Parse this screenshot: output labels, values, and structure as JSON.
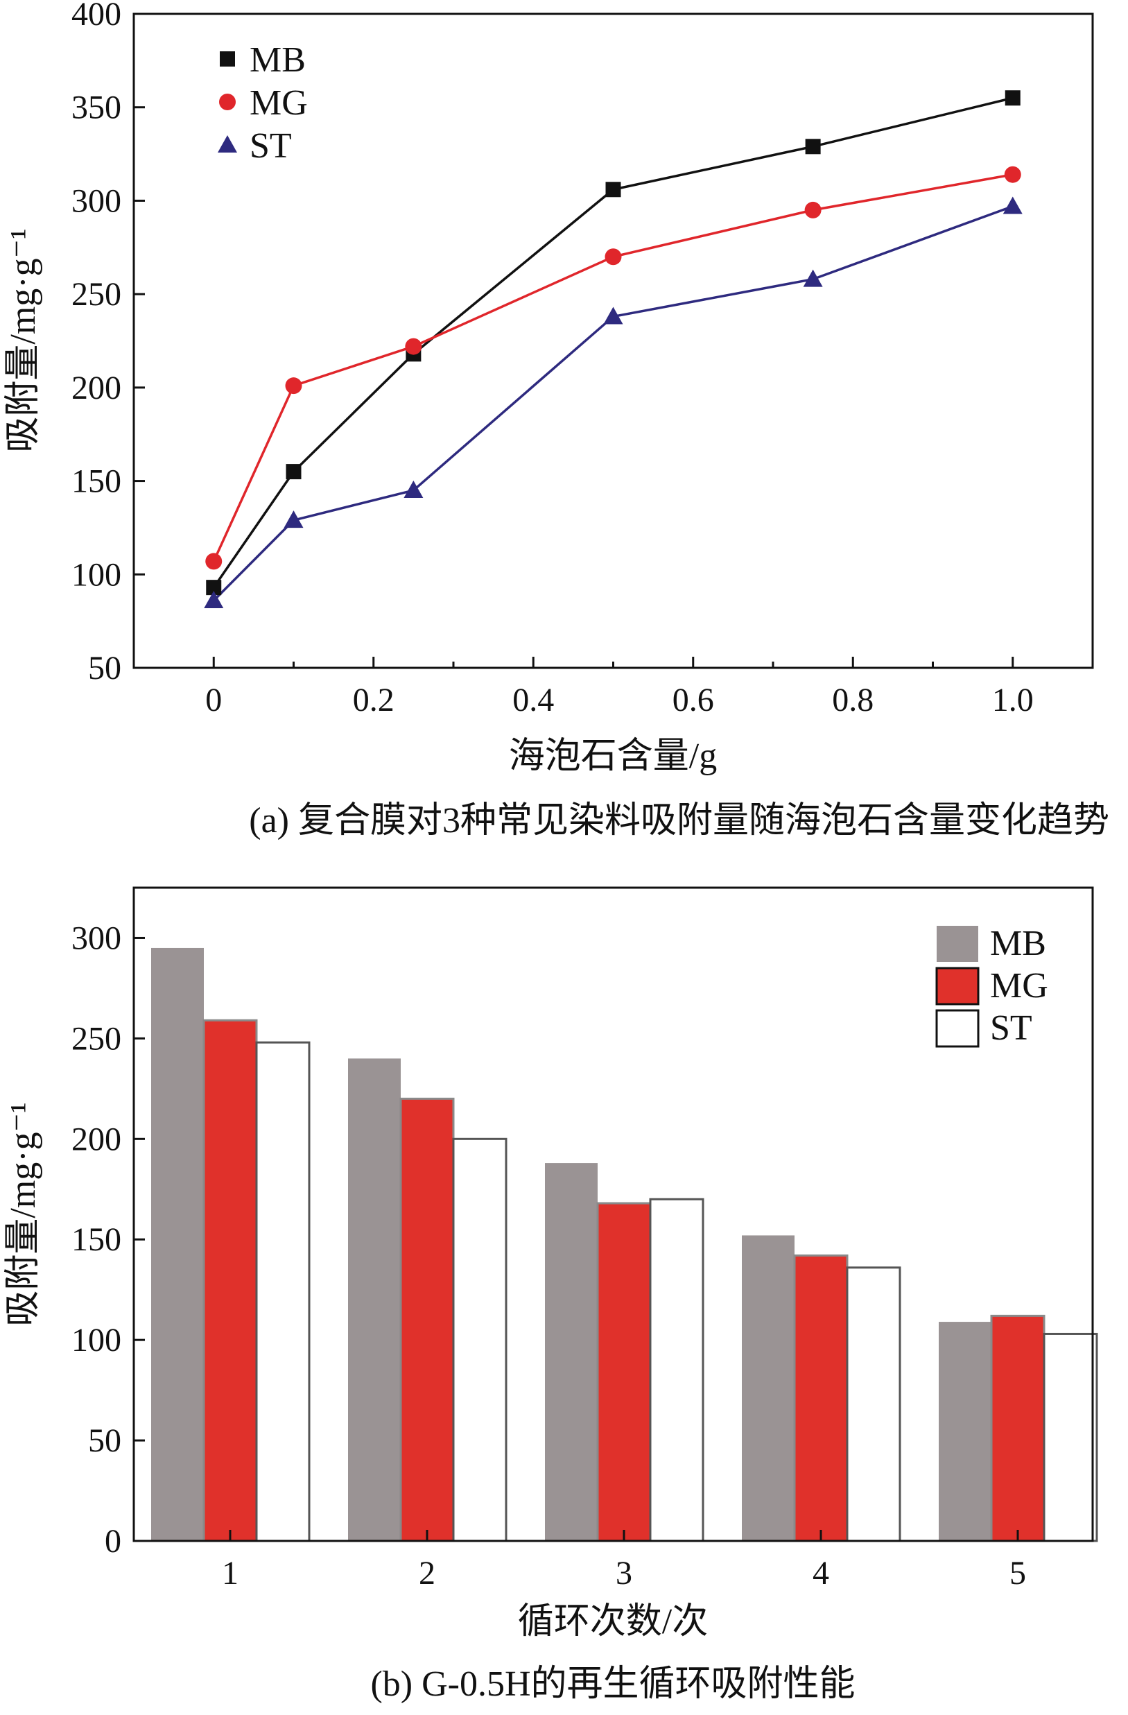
{
  "chart_data": [
    {
      "type": "line",
      "panel": "a",
      "caption": "(a) 复合膜对3种常见染料吸附量随海泡石含量变化趋势",
      "xlabel": "海泡石含量/g",
      "ylabel": "吸附量/mg·g⁻¹",
      "xlim": [
        -0.1,
        1.1
      ],
      "ylim": [
        50,
        400
      ],
      "x_ticks": [
        0,
        0.2,
        0.4,
        0.6,
        0.8,
        1.0
      ],
      "x_tick_labels": [
        "0",
        "0.2",
        "0.4",
        "0.6",
        "0.8",
        "1.0"
      ],
      "y_ticks": [
        50,
        100,
        150,
        200,
        250,
        300,
        350,
        400
      ],
      "y_tick_labels": [
        "50",
        "100",
        "150",
        "200",
        "250",
        "300",
        "350",
        "400"
      ],
      "x": [
        0,
        0.1,
        0.25,
        0.5,
        0.75,
        1.0
      ],
      "legend_position": "top-left",
      "series": [
        {
          "name": "MB",
          "marker": "square",
          "color": "#111111",
          "values": [
            93,
            155,
            218,
            306,
            329,
            355
          ]
        },
        {
          "name": "MG",
          "marker": "circle",
          "color": "#e0262b",
          "values": [
            107,
            201,
            222,
            270,
            295,
            314
          ]
        },
        {
          "name": "ST",
          "marker": "triangle",
          "color": "#2e2a7f",
          "values": [
            86,
            129,
            145,
            238,
            258,
            297
          ]
        }
      ]
    },
    {
      "type": "bar",
      "panel": "b",
      "caption": "(b) G-0.5H的再生循环吸附性能",
      "xlabel": "循环次数/次",
      "ylabel": "吸附量/mg·g⁻¹",
      "ylim": [
        0,
        325
      ],
      "y_ticks": [
        0,
        50,
        100,
        150,
        200,
        250,
        300
      ],
      "y_tick_labels": [
        "0",
        "50",
        "100",
        "150",
        "200",
        "250",
        "300"
      ],
      "categories": [
        "1",
        "2",
        "3",
        "4",
        "5"
      ],
      "legend_position": "top-right",
      "series": [
        {
          "name": "MB",
          "color": "#9a9394",
          "values": [
            295,
            240,
            188,
            152,
            109
          ]
        },
        {
          "name": "MG",
          "color": "#e0312b",
          "values": [
            259,
            220,
            168,
            142,
            112
          ]
        },
        {
          "name": "ST",
          "color": "#ffffff",
          "values": [
            248,
            200,
            170,
            136,
            103
          ]
        }
      ]
    }
  ]
}
